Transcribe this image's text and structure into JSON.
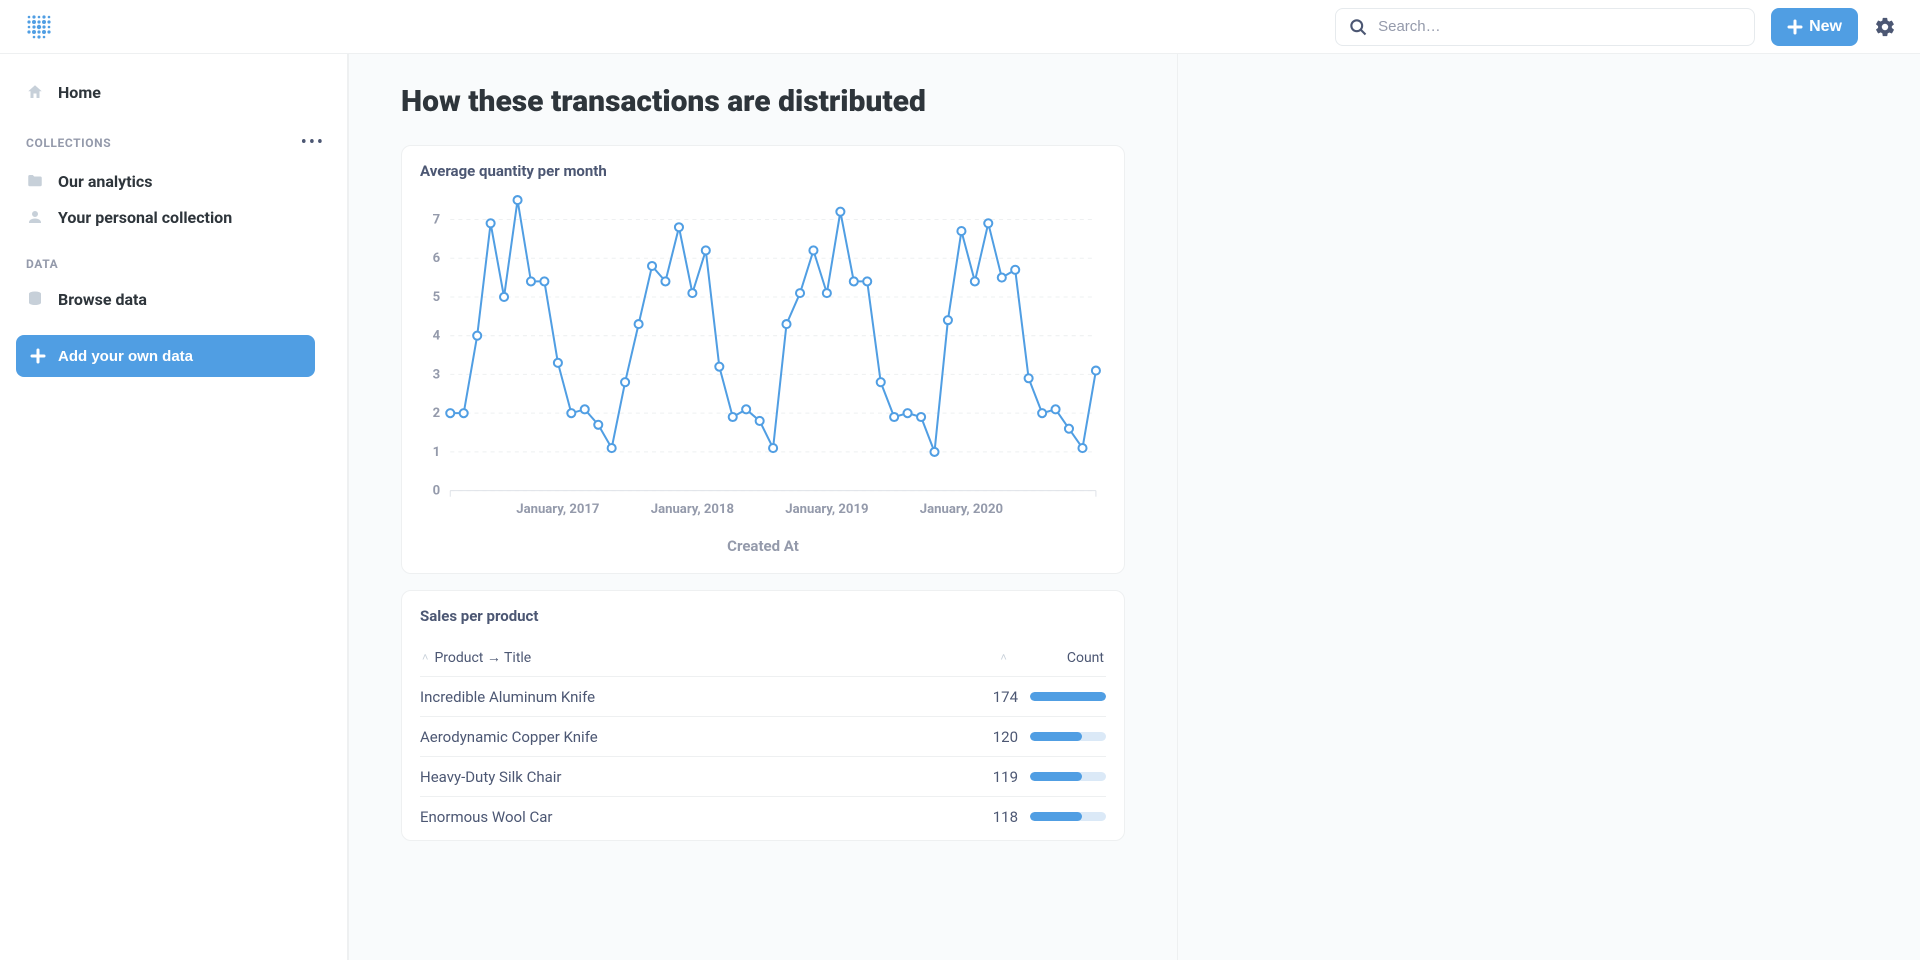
{
  "header": {
    "search_placeholder": "Search…",
    "new_button": "New"
  },
  "sidebar": {
    "home": "Home",
    "sections": {
      "collections": {
        "label": "COLLECTIONS",
        "items": [
          "Our analytics",
          "Your personal collection"
        ]
      },
      "data": {
        "label": "DATA",
        "items": [
          "Browse data"
        ]
      }
    },
    "add_data": "Add your own data"
  },
  "page": {
    "title": "How these transactions are distributed"
  },
  "chart": {
    "title": "Average quantity per month",
    "xlabel": "Created At",
    "type": "line",
    "line_color": "#509ee3",
    "point_fill": "#ffffff",
    "grid_color": "#eef0f1",
    "axis_color": "#dfe3e8",
    "point_radius": 4,
    "line_width": 2,
    "ylim": [
      0,
      7.5
    ],
    "yticks": [
      0,
      1,
      2,
      3,
      4,
      5,
      6,
      7
    ],
    "xticks": [
      {
        "idx": 8,
        "label": "January, 2017"
      },
      {
        "idx": 18,
        "label": "January, 2018"
      },
      {
        "idx": 28,
        "label": "January, 2019"
      },
      {
        "idx": 38,
        "label": "January, 2020"
      }
    ],
    "values": [
      2.0,
      2.0,
      4.0,
      6.9,
      5.0,
      7.5,
      5.4,
      5.4,
      3.3,
      2.0,
      2.1,
      1.7,
      1.1,
      2.8,
      4.3,
      5.8,
      5.4,
      6.8,
      5.1,
      6.2,
      3.2,
      1.9,
      2.1,
      1.8,
      1.1,
      4.3,
      5.1,
      6.2,
      5.1,
      7.2,
      5.4,
      5.4,
      2.8,
      1.9,
      2.0,
      1.9,
      1.0,
      4.4,
      6.7,
      5.4,
      6.9,
      5.5,
      5.7,
      2.9,
      2.0,
      2.1,
      1.6,
      1.1,
      3.1
    ]
  },
  "table": {
    "title": "Sales per product",
    "col_product": "Product → Title",
    "col_count": "Count",
    "max_count": 174,
    "bar_color": "#509ee3",
    "bar_bg": "#dbe9f7",
    "rows": [
      {
        "title": "Incredible Aluminum Knife",
        "count": 174
      },
      {
        "title": "Aerodynamic Copper Knife",
        "count": 120
      },
      {
        "title": "Heavy-Duty Silk Chair",
        "count": 119
      },
      {
        "title": "Enormous Wool Car",
        "count": 118
      }
    ]
  },
  "colors": {
    "accent": "#509ee3",
    "text_dark": "#2e353b",
    "text_muted": "#4c5773",
    "text_light": "#949aab",
    "border": "#eef0f1"
  }
}
